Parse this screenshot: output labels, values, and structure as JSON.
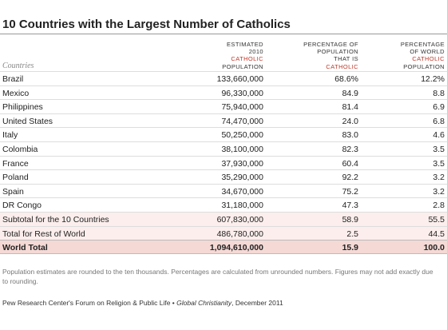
{
  "title": "10 Countries with the Largest Number of Catholics",
  "table": {
    "row_header": "Countries",
    "columns": [
      {
        "lines": [
          "ESTIMATED",
          "2010"
        ],
        "emphasis": "CATHOLIC",
        "lines_after": [
          "POPULATION"
        ]
      },
      {
        "lines": [
          "PERCENTAGE OF",
          "POPULATION",
          "THAT IS"
        ],
        "emphasis": "CATHOLIC",
        "lines_after": []
      },
      {
        "lines": [
          "PERCENTAGE",
          "OF WORLD"
        ],
        "emphasis": "CATHOLIC",
        "lines_after": [
          "POPULATION"
        ]
      }
    ],
    "rows": [
      [
        "Brazil",
        "133,660,000",
        "68.6%",
        "12.2%"
      ],
      [
        "Mexico",
        "96,330,000",
        "84.9",
        "8.8"
      ],
      [
        "Philippines",
        "75,940,000",
        "81.4",
        "6.9"
      ],
      [
        "United States",
        "74,470,000",
        "24.0",
        "6.8"
      ],
      [
        "Italy",
        "50,250,000",
        "83.0",
        "4.6"
      ],
      [
        "Colombia",
        "38,100,000",
        "82.3",
        "3.5"
      ],
      [
        "France",
        "37,930,000",
        "60.4",
        "3.5"
      ],
      [
        "Poland",
        "35,290,000",
        "92.2",
        "3.2"
      ],
      [
        "Spain",
        "34,670,000",
        "75.2",
        "3.2"
      ],
      [
        "DR Congo",
        "31,180,000",
        "47.3",
        "2.8"
      ]
    ],
    "subtotals": [
      [
        "Subtotal for the 10 Countries",
        "607,830,000",
        "58.9",
        "55.5"
      ],
      [
        "Total for Rest of World",
        "486,780,000",
        "2.5",
        "44.5"
      ]
    ],
    "total": [
      "World Total",
      "1,094,610,000",
      "15.9",
      "100.0"
    ]
  },
  "footnote": "Population estimates are rounded to the ten thousands. Percentages are calculated from unrounded numbers. Figures may not add exactly due to rounding.",
  "source": {
    "prefix": "Pew Research Center's Forum on Religion & Public Life • ",
    "publication": "Global Christianity",
    "suffix": ", December 2011"
  }
}
